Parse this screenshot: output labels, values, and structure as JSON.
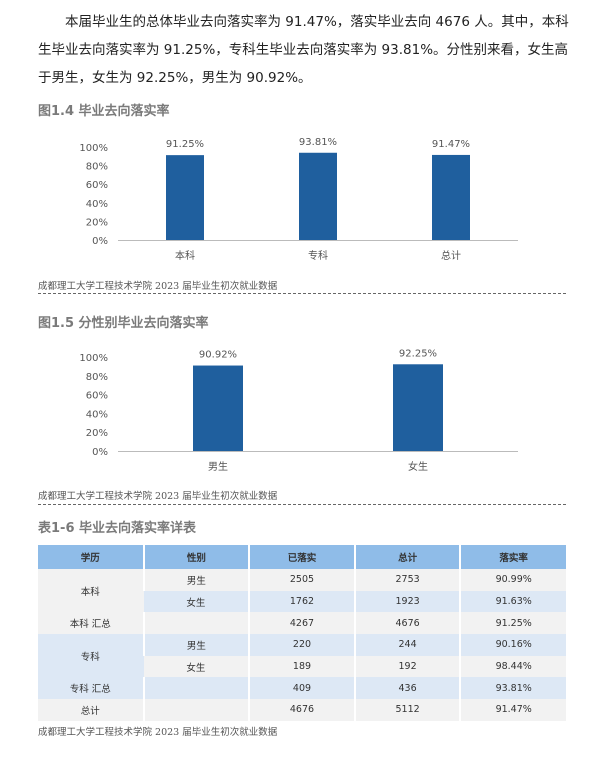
{
  "paragraph": "本届毕业生的总体毕业去向落实率为 91.47%，落实毕业去向 4676 人。其中，本科生毕业去向落实率为 91.25%，专科生毕业去向落实率为 93.81%。分性别来看，女生高于男生，女生为 92.25%，男生为 90.92%。",
  "figure1": {
    "title": "图1.4 毕业去向落实率",
    "caption": "成都理工大学工程技术学院 2023 届毕业生初次就业数据"
  },
  "figure2": {
    "title": "图1.5 分性别毕业去向落实率",
    "caption": "成都理工大学工程技术学院 2023 届毕业生初次就业数据"
  },
  "table": {
    "title": "表1-6 毕业去向落实率详表",
    "caption": "成都理工大学工程技术学院 2023 届毕业生初次就业数据",
    "headers": [
      "学历",
      "性别",
      "已落实",
      "总计",
      "落实率"
    ],
    "rows": [
      [
        "本科",
        "男生",
        "2505",
        "2753",
        "90.99%"
      ],
      [
        "",
        "女生",
        "1762",
        "1923",
        "91.63%"
      ],
      [
        "本科 汇总",
        "",
        "4267",
        "4676",
        "91.25%"
      ],
      [
        "专科",
        "男生",
        "220",
        "244",
        "90.16%"
      ],
      [
        "",
        "女生",
        "189",
        "192",
        "98.44%"
      ],
      [
        "专科 汇总",
        "",
        "409",
        "436",
        "93.81%"
      ],
      [
        "总计",
        "",
        "4676",
        "5112",
        "91.47%"
      ]
    ]
  },
  "chart_data": [
    {
      "type": "bar",
      "categories": [
        "本科",
        "专科",
        "总计"
      ],
      "values": [
        91.25,
        93.81,
        91.47
      ],
      "labels": [
        "91.25%",
        "93.81%",
        "91.47%"
      ],
      "yticks": [
        "0%",
        "20%",
        "40%",
        "60%",
        "80%",
        "100%"
      ],
      "ylim": [
        0,
        100
      ],
      "color": "#1f5f9e",
      "grid": false
    },
    {
      "type": "bar",
      "categories": [
        "男生",
        "女生"
      ],
      "values": [
        90.92,
        92.25
      ],
      "labels": [
        "90.92%",
        "92.25%"
      ],
      "yticks": [
        "0%",
        "20%",
        "40%",
        "60%",
        "80%",
        "100%"
      ],
      "ylim": [
        0,
        100
      ],
      "color": "#1f5f9e",
      "grid": false
    }
  ]
}
